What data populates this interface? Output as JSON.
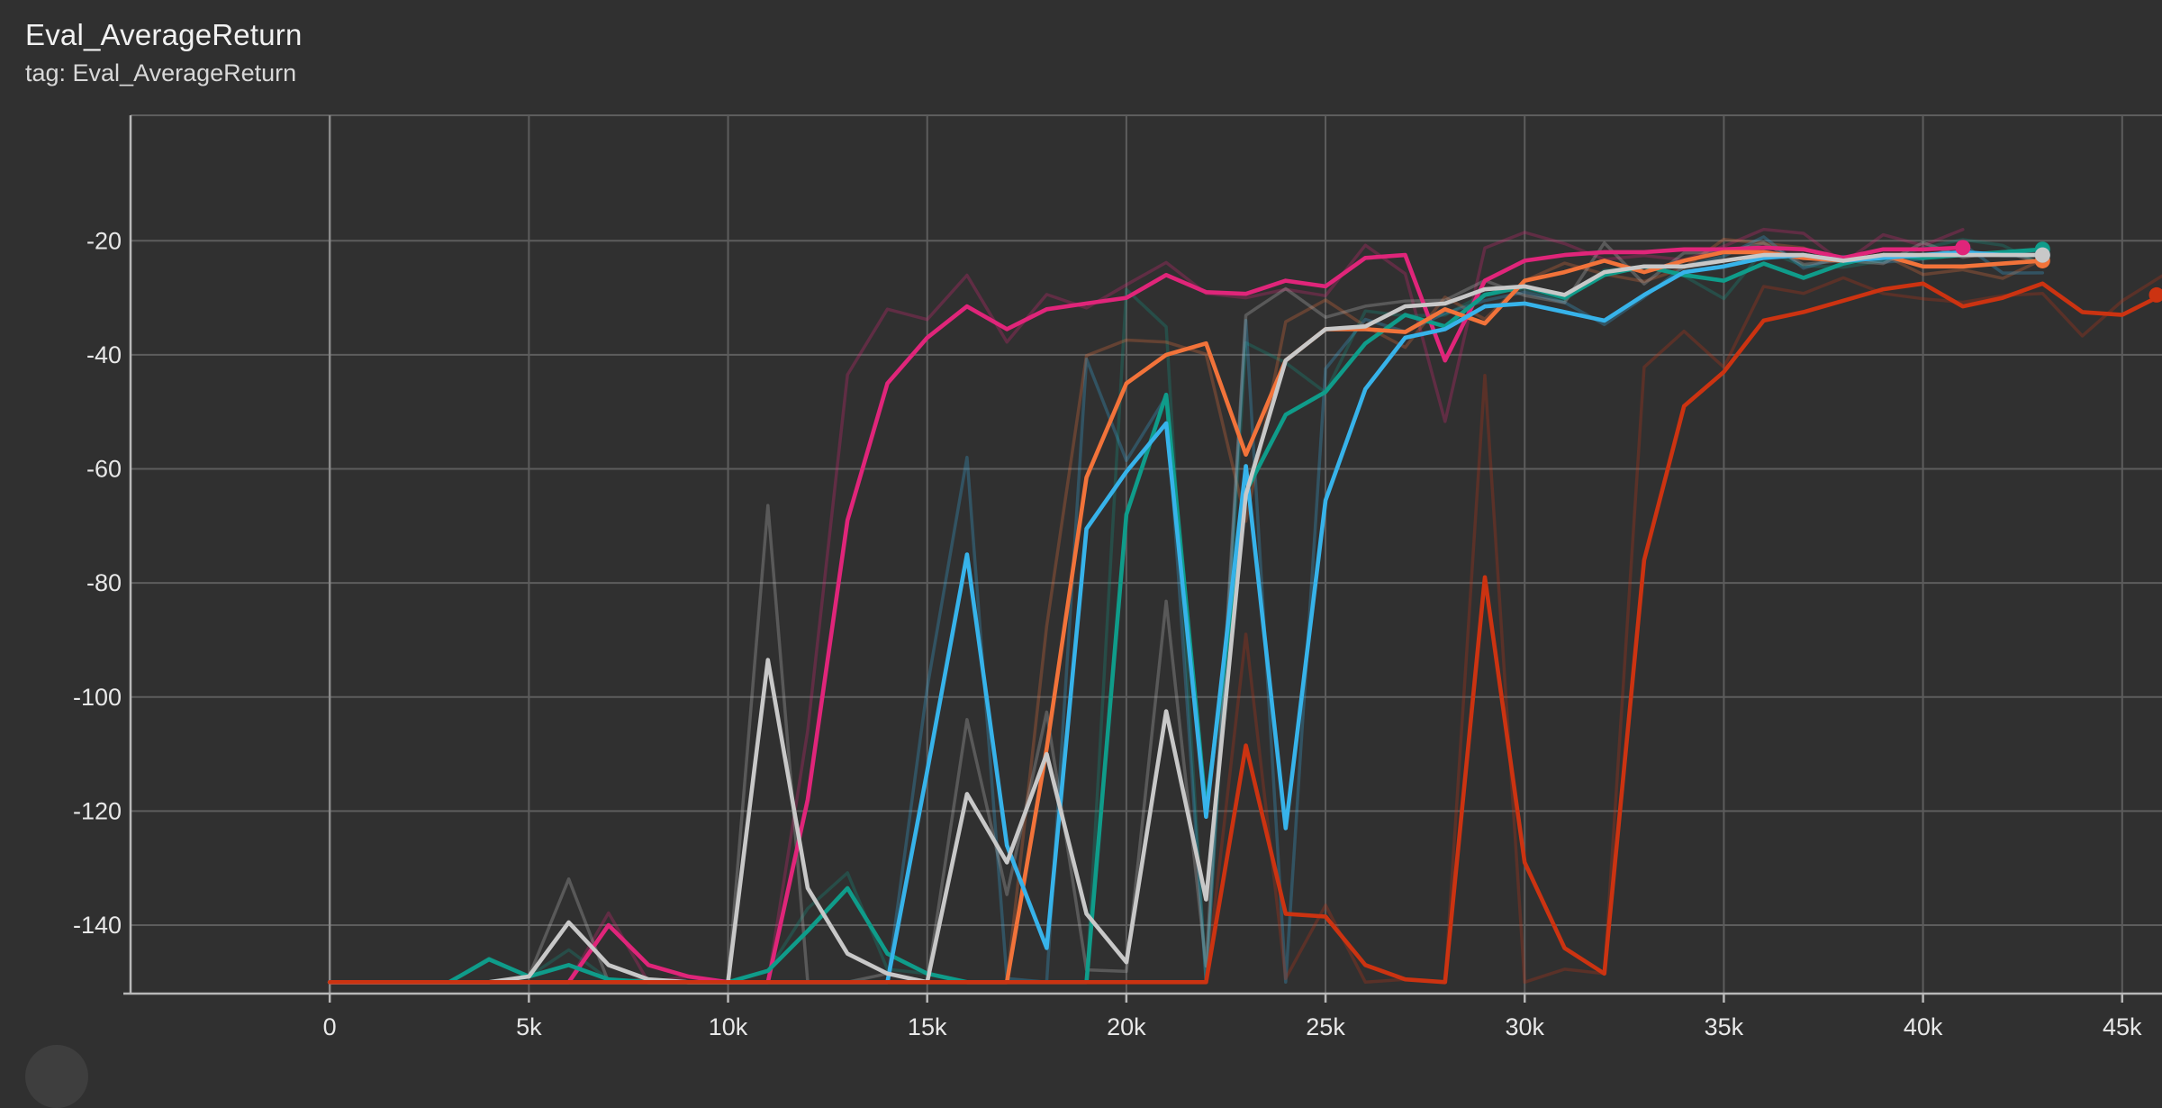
{
  "header": {
    "title": "Eval_AverageReturn",
    "subtitle": "tag: Eval_AverageReturn"
  },
  "chart_data": {
    "type": "line",
    "title": "Eval_AverageReturn",
    "subtitle": "tag: Eval_AverageReturn",
    "xlabel": "",
    "ylabel": "",
    "xlim": [
      -5000,
      46000
    ],
    "ylim": [
      -152,
      2
    ],
    "x_ticks": [
      0,
      5000,
      10000,
      15000,
      20000,
      25000,
      30000,
      35000,
      40000,
      45000
    ],
    "x_tick_labels": [
      "0",
      "5k",
      "10k",
      "15k",
      "20k",
      "25k",
      "30k",
      "35k",
      "40k",
      "45k"
    ],
    "y_ticks": [
      -140,
      -120,
      -100,
      -80,
      -60,
      -40,
      -20
    ],
    "y_tick_labels": [
      "-140",
      "-120",
      "-100",
      "-80",
      "-60",
      "-40",
      "-20"
    ],
    "grid": true,
    "smoothing_shadow": true,
    "series": [
      {
        "color": "#e0257a",
        "x": [
          0,
          1000,
          2000,
          3000,
          4000,
          5000,
          6000,
          7000,
          8000,
          9000,
          10000,
          11000,
          12000,
          13000,
          14000,
          15000,
          16000,
          17000,
          18000,
          19000,
          20000,
          21000,
          22000,
          23000,
          24000,
          25000,
          26000,
          27000,
          28000,
          29000,
          30000,
          31000,
          32000,
          33000,
          34000,
          35000,
          36000,
          37000,
          38000,
          39000,
          40000,
          41000
        ],
        "y": [
          -150,
          -150,
          -150,
          -150,
          -150,
          -150,
          -150,
          -140,
          -147,
          -149,
          -150,
          -150,
          -118,
          -69,
          -45,
          -37,
          -31.5,
          -35.5,
          -32,
          -31,
          -30,
          -26,
          -29,
          -29.3,
          -27,
          -28,
          -23,
          -22.5,
          -41,
          -27,
          -23.5,
          -22.5,
          -22,
          -22,
          -21.5,
          -21.5,
          -21.2,
          -21.5,
          -23,
          -21.5,
          -21.5,
          -21.2
        ]
      },
      {
        "color": "#0f9c8a",
        "x": [
          0,
          1000,
          2000,
          3000,
          4000,
          5000,
          6000,
          7000,
          8000,
          9000,
          10000,
          11000,
          12000,
          13000,
          14000,
          15000,
          16000,
          17000,
          18000,
          19000,
          20000,
          21000,
          22000,
          23000,
          24000,
          25000,
          26000,
          27000,
          28000,
          29000,
          30000,
          31000,
          32000,
          33000,
          34000,
          35000,
          36000,
          37000,
          38000,
          39000,
          40000,
          41000,
          42000,
          43000
        ],
        "y": [
          -150,
          -150,
          -150,
          -150,
          -146,
          -149,
          -147,
          -149.5,
          -150,
          -150,
          -150,
          -148,
          -141,
          -133.5,
          -145,
          -148.5,
          -150,
          -150,
          -150,
          -150,
          -68,
          -47,
          -120,
          -64,
          -50.5,
          -46.5,
          -38,
          -33,
          -35,
          -29.5,
          -28,
          -30,
          -26,
          -24.5,
          -26,
          -27,
          -24,
          -26.5,
          -24,
          -22.5,
          -23,
          -22.5,
          -22,
          -21.5
        ]
      },
      {
        "color": "#f2733a",
        "x": [
          0,
          1000,
          2000,
          3000,
          4000,
          5000,
          6000,
          7000,
          8000,
          9000,
          10000,
          11000,
          12000,
          13000,
          14000,
          15000,
          16000,
          17000,
          18000,
          19000,
          20000,
          21000,
          22000,
          23000,
          24000,
          25000,
          26000,
          27000,
          28000,
          29000,
          30000,
          31000,
          32000,
          33000,
          34000,
          35000,
          36000,
          37000,
          38000,
          39000,
          40000,
          41000,
          42000,
          43000
        ],
        "y": [
          -150,
          -150,
          -150,
          -150,
          -150,
          -150,
          -150,
          -150,
          -150,
          -150,
          -150,
          -150,
          -150,
          -150,
          -150,
          -150,
          -150,
          -150,
          -109,
          -61.5,
          -45,
          -40,
          -38,
          -57.5,
          -41,
          -35.5,
          -35.5,
          -36,
          -32,
          -34.5,
          -27,
          -25.5,
          -23.5,
          -25.5,
          -23.5,
          -22,
          -22,
          -23,
          -23.5,
          -22.5,
          -24.5,
          -24.5,
          -24,
          -23.5
        ]
      },
      {
        "color": "#37b3ea",
        "x": [
          0,
          1000,
          2000,
          3000,
          4000,
          5000,
          6000,
          7000,
          8000,
          9000,
          10000,
          11000,
          12000,
          13000,
          14000,
          15000,
          16000,
          17000,
          18000,
          19000,
          20000,
          21000,
          22000,
          23000,
          24000,
          25000,
          26000,
          27000,
          28000,
          29000,
          30000,
          31000,
          32000,
          33000,
          34000,
          35000,
          36000,
          37000,
          38000,
          39000,
          40000,
          41000,
          42000,
          43000
        ],
        "y": [
          -150,
          -150,
          -150,
          -150,
          -150,
          -150,
          -150,
          -150,
          -150,
          -150,
          -150,
          -150,
          -150,
          -150,
          -150,
          -113,
          -75,
          -126,
          -144,
          -70.5,
          -60.5,
          -52,
          -121,
          -59.5,
          -123,
          -65.5,
          -46,
          -37,
          -35.5,
          -31.5,
          -31,
          -32.5,
          -34,
          -29.5,
          -25.5,
          -24.5,
          -23,
          -22.5,
          -23.5,
          -23,
          -22.5,
          -22,
          -22.5,
          -22.5
        ]
      },
      {
        "color": "#c8c8c8",
        "x": [
          0,
          1000,
          2000,
          3000,
          4000,
          5000,
          6000,
          7000,
          8000,
          9000,
          10000,
          11000,
          12000,
          13000,
          14000,
          15000,
          16000,
          17000,
          18000,
          19000,
          20000,
          21000,
          22000,
          23000,
          24000,
          25000,
          26000,
          27000,
          28000,
          29000,
          30000,
          31000,
          32000,
          33000,
          34000,
          35000,
          36000,
          37000,
          38000,
          39000,
          40000,
          41000,
          42000,
          43000
        ],
        "y": [
          -150,
          -150,
          -150,
          -150,
          -150,
          -149,
          -139.5,
          -147,
          -149.5,
          -150,
          -150,
          -93.5,
          -133.5,
          -145,
          -148.5,
          -150,
          -117,
          -129,
          -110,
          -138,
          -146.5,
          -102.5,
          -135.5,
          -64.5,
          -41,
          -35.5,
          -35,
          -31.5,
          -31,
          -28.5,
          -28,
          -29.5,
          -25.5,
          -24.5,
          -24.5,
          -23.5,
          -22.5,
          -22.5,
          -23.5,
          -22.5,
          -22.5,
          -22.5,
          -22.5,
          -22.5
        ]
      },
      {
        "color": "#cc3311",
        "x": [
          0,
          1000,
          2000,
          3000,
          4000,
          5000,
          6000,
          7000,
          8000,
          9000,
          10000,
          11000,
          12000,
          13000,
          14000,
          15000,
          16000,
          17000,
          18000,
          19000,
          20000,
          21000,
          22000,
          23000,
          24000,
          25000,
          26000,
          27000,
          28000,
          29000,
          30000,
          31000,
          32000,
          33000,
          34000,
          35000,
          36000,
          37000,
          38000,
          39000,
          40000,
          41000,
          42000,
          43000,
          44000,
          45000,
          46000
        ],
        "y": [
          -150,
          -150,
          -150,
          -150,
          -150,
          -150,
          -150,
          -150,
          -150,
          -150,
          -150,
          -150,
          -150,
          -150,
          -150,
          -150,
          -150,
          -150,
          -150,
          -150,
          -150,
          -150,
          -150,
          -108.5,
          -138,
          -138.5,
          -147,
          -149.5,
          -150,
          -79,
          -129,
          -144,
          -148.5,
          -76,
          -49,
          -43,
          -34,
          -32.5,
          -30.5,
          -28.5,
          -27.5,
          -31.5,
          -30,
          -27.5,
          -32.5,
          -33,
          -29.5
        ]
      }
    ]
  }
}
